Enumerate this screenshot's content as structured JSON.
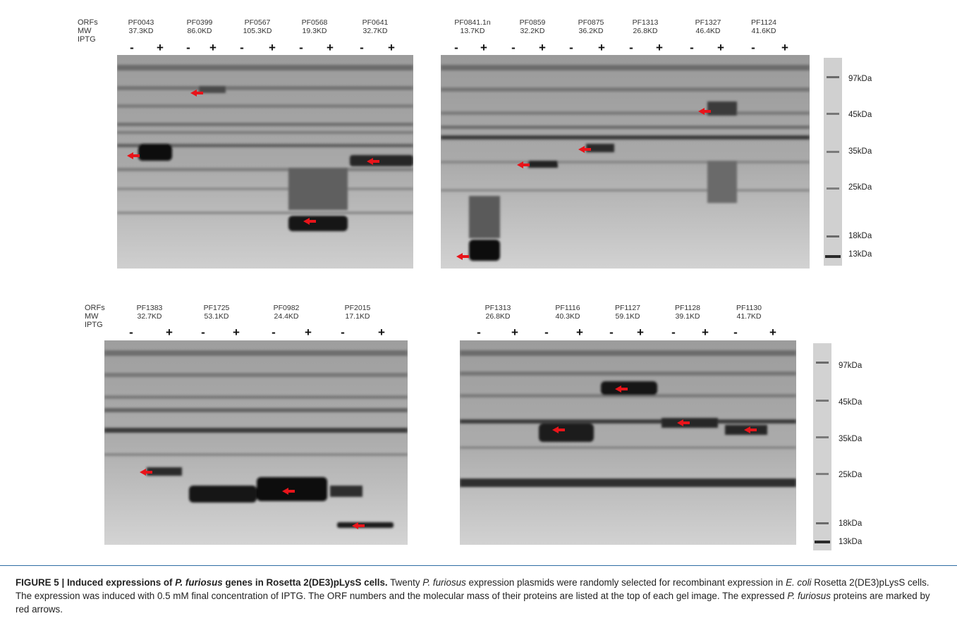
{
  "panels": [
    {
      "id": "top-left",
      "row_labels": [
        "ORFs",
        "MW",
        "IPTG"
      ],
      "orfs": [
        {
          "name": "PF0043",
          "mw": "37.3KD"
        },
        {
          "name": "PF0399",
          "mw": "86.0KD"
        },
        {
          "name": "PF0567",
          "mw": "105.3KD"
        },
        {
          "name": "PF0568",
          "mw": "19.3KD"
        },
        {
          "name": "PF0641",
          "mw": "32.7KD"
        }
      ],
      "signs": [
        "-",
        "+",
        "-",
        "+",
        "-",
        "+",
        "-",
        "+",
        "-",
        "+"
      ]
    },
    {
      "id": "top-right",
      "orfs": [
        {
          "name": "PF0841.1n",
          "mw": "13.7KD"
        },
        {
          "name": "PF0859",
          "mw": "32.2KD"
        },
        {
          "name": "PF0875",
          "mw": "36.2KD"
        },
        {
          "name": "PF1313",
          "mw": "26.8KD"
        },
        {
          "name": "PF1327",
          "mw": "46.4KD"
        },
        {
          "name": "PF1124",
          "mw": "41.6KD"
        }
      ],
      "signs": [
        "-",
        "+",
        "-",
        "+",
        "-",
        "+",
        "-",
        "+",
        "-",
        "+",
        "-",
        "+"
      ],
      "markers": [
        "97kDa",
        "45kDa",
        "35kDa",
        "25kDa",
        "18kDa",
        "13kDa"
      ]
    },
    {
      "id": "bottom-left",
      "row_labels": [
        "ORFs",
        "MW",
        "IPTG"
      ],
      "orfs": [
        {
          "name": "PF1383",
          "mw": "32.7KD"
        },
        {
          "name": "PF1725",
          "mw": "53.1KD"
        },
        {
          "name": "PF0982",
          "mw": "24.4KD"
        },
        {
          "name": "PF2015",
          "mw": "17.1KD"
        }
      ],
      "signs": [
        "-",
        "+",
        "-",
        "+",
        "-",
        "+",
        "-",
        "+"
      ]
    },
    {
      "id": "bottom-right",
      "orfs": [
        {
          "name": "PF1313",
          "mw": "26.8KD"
        },
        {
          "name": "PF1116",
          "mw": "40.3KD"
        },
        {
          "name": "PF1127",
          "mw": "59.1KD"
        },
        {
          "name": "PF1128",
          "mw": "39.1KD"
        },
        {
          "name": "PF1130",
          "mw": "41.7KD"
        }
      ],
      "signs": [
        "-",
        "+",
        "-",
        "+",
        "-",
        "+",
        "-",
        "+",
        "-",
        "+"
      ],
      "markers": [
        "97kDa",
        "45kDa",
        "35kDa",
        "25kDa",
        "18kDa",
        "13kDa"
      ]
    }
  ],
  "caption": {
    "title_prefix": "FIGURE 5 | Induced expressions of ",
    "title_species": "P. furiosus",
    "title_suffix": " genes in Rosetta 2(DE3)pLysS cells.",
    "t1": " Twenty ",
    "species": "P. furiosus",
    "t2": " expression plasmids were randomly selected for recombinant expression in ",
    "ecoli": "E. coli",
    "t3": " Rosetta 2(DE3)pLysS cells. The expression was induced with 0.5 mM final concentration of IPTG. The ORF numbers and the molecular mass of their proteins are listed at the top of each gel image. The expressed ",
    "t4": " proteins are marked by red arrows."
  }
}
